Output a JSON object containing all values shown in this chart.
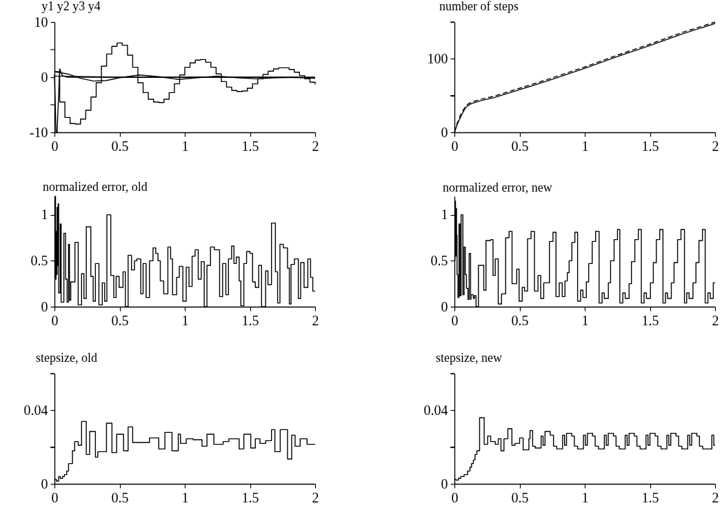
{
  "chart_data": [
    {
      "type": "line",
      "title": "y1 y2 y3 y4",
      "xlim": [
        0,
        2
      ],
      "ylim": [
        -10,
        10
      ],
      "xticks": [
        0,
        0.5,
        1,
        1.5,
        2
      ],
      "yticks": [
        -10,
        {
          "value": -5,
          "label": null
        },
        0,
        {
          "value": 5,
          "label": null
        },
        10
      ],
      "series": [
        {
          "type": "step",
          "color": "#000000",
          "x": [
            0,
            0.04,
            0.08,
            0.12,
            0.16,
            0.2,
            0.24,
            0.28,
            0.32,
            0.36,
            0.4,
            0.44,
            0.48,
            0.52,
            0.56,
            0.6,
            0.64,
            0.68,
            0.72,
            0.76,
            0.8,
            0.84,
            0.88,
            0.92,
            0.96,
            1,
            1.04,
            1.08,
            1.12,
            1.16,
            1.2,
            1.24,
            1.28,
            1.32,
            1.36,
            1.4,
            1.44,
            1.48,
            1.52,
            1.56,
            1.6,
            1.64,
            1.68,
            1.72,
            1.76,
            1.8,
            1.84,
            1.88,
            1.92,
            1.96,
            2
          ],
          "values": [
            1,
            -4.5,
            -7.3,
            -8.4,
            -8.5,
            -7.6,
            -6,
            -3.6,
            -1,
            2,
            4.2,
            5.6,
            6.2,
            5.8,
            4,
            1.8,
            -1,
            -2.8,
            -4,
            -4.5,
            -4.6,
            -4,
            -2.8,
            -1.2,
            0.4,
            1.8,
            2.6,
            3.1,
            3.2,
            2.7,
            1.8,
            0.6,
            -0.8,
            -1.8,
            -2.4,
            -2.6,
            -2.5,
            -2,
            -1.2,
            -0.3,
            0.5,
            1.1,
            1.5,
            1.7,
            1.7,
            1.4,
            0.9,
            0.3,
            -0.3,
            -0.9,
            -1.3
          ]
        },
        {
          "type": "line",
          "color": "#000000",
          "x": [
            0,
            0.012,
            0.02,
            0.04,
            0.06,
            0.1,
            0.5,
            1,
            1.5,
            2
          ],
          "values": [
            0.5,
            -10,
            -10,
            1.5,
            0.3,
            0,
            0,
            0,
            0,
            -0.1
          ]
        },
        {
          "type": "line",
          "color": "#000000",
          "x": [
            0,
            0.1,
            0.2,
            0.3,
            0.4,
            0.5,
            0.65,
            0.8,
            0.95,
            1.1,
            1.25,
            1.4,
            1.55,
            1.7,
            1.85,
            2
          ],
          "values": [
            1,
            0.6,
            -0.2,
            -0.7,
            -0.6,
            -0.1,
            0.4,
            0.1,
            -0.4,
            -0.1,
            0.2,
            -0.1,
            -0.3,
            -0.1,
            0,
            -0.2
          ]
        },
        {
          "type": "line",
          "color": "#000000",
          "x": [
            0,
            0.5,
            1,
            1.5,
            2
          ],
          "values": [
            0.2,
            0,
            0,
            0,
            0
          ]
        }
      ]
    },
    {
      "type": "line",
      "title": "number of steps",
      "xlim": [
        0,
        2
      ],
      "ylim": [
        0,
        150
      ],
      "xticks": [
        0,
        0.5,
        1,
        1.5,
        2
      ],
      "yticks": [
        0,
        {
          "value": 50,
          "label": null
        },
        100,
        {
          "value": 150,
          "label": null
        }
      ],
      "series": [
        {
          "color": "#000000",
          "line_style": "solid",
          "x": [
            0,
            0.02,
            0.05,
            0.08,
            0.1,
            0.13,
            0.2,
            0.3,
            0.5,
            0.75,
            1,
            1.25,
            1.5,
            1.75,
            2
          ],
          "values": [
            0,
            10,
            22,
            32,
            36,
            39,
            43,
            47,
            58,
            72,
            87,
            103,
            118,
            134,
            148
          ]
        },
        {
          "color": "#000000",
          "line_style": "dashed",
          "x": [
            0,
            0.02,
            0.05,
            0.08,
            0.1,
            0.13,
            0.2,
            0.3,
            0.5,
            0.75,
            1,
            1.25,
            1.5,
            1.75,
            2
          ],
          "values": [
            0,
            12,
            25,
            34,
            38,
            41,
            45,
            49,
            60,
            74,
            89,
            105,
            120,
            136,
            150
          ]
        }
      ]
    },
    {
      "type": "step",
      "title": "normalized error, old",
      "xlim": [
        0,
        2
      ],
      "ylim": [
        0,
        1.2
      ],
      "xticks": [
        0,
        0.5,
        1,
        1.5,
        2
      ],
      "yticks": [
        0,
        0.5,
        1
      ],
      "series": [
        {
          "color": "#000000",
          "x": [
            0,
            0.004,
            0.008,
            0.012,
            0.016,
            0.02,
            0.024,
            0.028,
            0.032,
            0.044,
            0.051,
            0.072,
            0.085,
            0.097,
            0.108,
            0.115,
            0.125,
            0.157,
            0.182,
            0.208,
            0.226,
            0.244,
            0.279,
            0.297,
            0.314,
            0.341,
            0.367,
            0.385,
            0.402,
            0.432,
            0.455,
            0.473,
            0.496,
            0.526,
            0.544,
            0.565,
            0.591,
            0.614,
            0.632,
            0.662,
            0.68,
            0.703,
            0.729,
            0.756,
            0.777,
            0.794,
            0.812,
            0.838,
            0.87,
            0.891,
            0.906,
            0.937,
            0.958,
            0.985,
            1.011,
            1.032,
            1.056,
            1.079,
            1.103,
            1.126,
            1.149,
            1.17,
            1.197,
            1.227,
            1.267,
            1.29,
            1.315,
            1.335,
            1.359,
            1.377,
            1.395,
            1.417,
            1.43,
            1.453,
            1.474,
            1.5,
            1.52,
            1.541,
            1.567,
            1.589,
            1.62,
            1.638,
            1.665,
            1.695,
            1.712,
            1.73,
            1.756,
            1.788,
            1.802,
            1.815,
            1.841,
            1.871,
            1.889,
            1.915,
            1.944,
            1.965,
            1.982,
            2
          ],
          "values": [
            0.5,
            1.2,
            0.3,
            0.82,
            0.35,
            1.08,
            0.45,
            1.12,
            0.15,
            0.9,
            0.05,
            0.8,
            0.3,
            0.05,
            0.68,
            0.07,
            0.27,
            0.7,
            0.02,
            0.36,
            0.09,
            0.87,
            0.33,
            0.06,
            0.47,
            0.02,
            0.26,
            0.06,
            1.0,
            0.34,
            0.1,
            0.33,
            0.21,
            0.38,
            0.0,
            0.56,
            0.4,
            0.5,
            0.52,
            0.14,
            0.47,
            0.1,
            0.5,
            0.64,
            0.58,
            0.5,
            0.28,
            0.14,
            0.65,
            0.52,
            0.13,
            0.32,
            0.44,
            0.06,
            0.43,
            0.22,
            0.55,
            0.62,
            0.3,
            0.49,
            0.0,
            0.45,
            0.65,
            0.62,
            0.11,
            0.47,
            0.13,
            0.52,
            0.66,
            0.47,
            0.54,
            0.28,
            0.01,
            0.47,
            0.6,
            0.58,
            0.27,
            0.21,
            0.45,
            0.0,
            0.39,
            0.24,
            0.91,
            0.38,
            0.04,
            0.68,
            0.64,
            0.42,
            0.03,
            0.46,
            0.52,
            0.09,
            0.48,
            0.21,
            0.52,
            0.32,
            0.17,
            0.17
          ]
        }
      ]
    },
    {
      "type": "step",
      "title": "normalized error, new",
      "xlim": [
        0,
        2
      ],
      "ylim": [
        0,
        1.2
      ],
      "xticks": [
        0,
        0.5,
        1,
        1.5,
        2
      ],
      "yticks": [
        0,
        0.5,
        1
      ],
      "series": [
        {
          "color": "#000000",
          "x": [
            0,
            0.004,
            0.008,
            0.012,
            0.016,
            0.02,
            0.027,
            0.035,
            0.043,
            0.051,
            0.065,
            0.074,
            0.083,
            0.092,
            0.104,
            0.113,
            0.124,
            0.127,
            0.145,
            0.154,
            0.166,
            0.184,
            0.225,
            0.242,
            0.278,
            0.296,
            0.313,
            0.336,
            0.361,
            0.393,
            0.419,
            0.442,
            0.478,
            0.496,
            0.52,
            0.538,
            0.561,
            0.588,
            0.614,
            0.641,
            0.662,
            0.685,
            0.729,
            0.756,
            0.779,
            0.804,
            0.827,
            0.848,
            0.866,
            0.88,
            0.901,
            0.924,
            0.945,
            0.968,
            0.986,
            1.012,
            1.03,
            1.057,
            1.083,
            1.11,
            1.133,
            1.15,
            1.181,
            1.198,
            1.225,
            1.251,
            1.269,
            1.292,
            1.31,
            1.34,
            1.358,
            1.384,
            1.411,
            1.434,
            1.455,
            1.473,
            1.504,
            1.526,
            1.549,
            1.575,
            1.6,
            1.619,
            1.635,
            1.664,
            1.685,
            1.712,
            1.738,
            1.765,
            1.782,
            1.8,
            1.83,
            1.853,
            1.876,
            1.903,
            1.924,
            1.945,
            1.963,
            1.986,
            2
          ],
          "values": [
            0.5,
            1.15,
            0.55,
            1.07,
            0.78,
            0.35,
            0.1,
            0.9,
            0.12,
            1.0,
            0.13,
            0.65,
            0.35,
            0.2,
            0.08,
            0.58,
            0.08,
            0.13,
            0.09,
            0.12,
            0.0,
            0.45,
            0.18,
            0.72,
            0.73,
            0.34,
            0.52,
            0.03,
            0.14,
            0.75,
            0.82,
            0.25,
            0.41,
            0.06,
            0.21,
            0.17,
            0.74,
            0.82,
            0.17,
            0.34,
            0.09,
            0.26,
            0.71,
            0.81,
            0.11,
            0.26,
            0.11,
            0.28,
            0.37,
            0.5,
            0.7,
            0.81,
            0.06,
            0.18,
            0.1,
            0.27,
            0.47,
            0.71,
            0.82,
            0.04,
            0.15,
            0.09,
            0.26,
            0.5,
            0.73,
            0.84,
            0.04,
            0.15,
            0.09,
            0.25,
            0.49,
            0.73,
            0.84,
            0.04,
            0.15,
            0.09,
            0.26,
            0.48,
            0.73,
            0.84,
            0.04,
            0.15,
            0.09,
            0.26,
            0.48,
            0.73,
            0.84,
            0.04,
            0.15,
            0.09,
            0.26,
            0.48,
            0.72,
            0.84,
            0.04,
            0.15,
            0.09,
            0.26,
            0.26
          ]
        }
      ]
    },
    {
      "type": "step",
      "title": "stepsize, old",
      "xlim": [
        0,
        2
      ],
      "ylim": [
        0,
        0.06
      ],
      "xticks": [
        0,
        0.5,
        1,
        1.5,
        2
      ],
      "yticks": [
        0,
        {
          "value": 0.02,
          "label": null
        },
        0.04,
        {
          "value": 0.06,
          "label": null
        }
      ],
      "series": [
        {
          "color": "#000000",
          "x": [
            0,
            0.014,
            0.032,
            0.044,
            0.062,
            0.076,
            0.094,
            0.108,
            0.138,
            0.155,
            0.182,
            0.208,
            0.244,
            0.27,
            0.314,
            0.332,
            0.399,
            0.441,
            0.477,
            0.53,
            0.565,
            0.6,
            0.729,
            0.8,
            0.847,
            0.902,
            0.95,
            0.967,
            1.011,
            1.064,
            1.132,
            1.17,
            1.223,
            1.294,
            1.338,
            1.417,
            1.453,
            1.506,
            1.541,
            1.576,
            1.62,
            1.665,
            1.691,
            1.732,
            1.788,
            1.82,
            1.846,
            1.885,
            1.938,
            2
          ],
          "values": [
            0.0025,
            0.0015,
            0.004,
            0.003,
            0.004,
            0.005,
            0.007,
            0.011,
            0.018,
            0.023,
            0.021,
            0.034,
            0.016,
            0.0285,
            0.0145,
            0.0175,
            0.033,
            0.017,
            0.027,
            0.018,
            0.031,
            0.0225,
            0.025,
            0.019,
            0.028,
            0.018,
            0.027,
            0.022,
            0.0245,
            0.024,
            0.0205,
            0.027,
            0.0215,
            0.023,
            0.0245,
            0.019,
            0.027,
            0.0195,
            0.0245,
            0.022,
            0.0235,
            0.0295,
            0.0175,
            0.0295,
            0.0135,
            0.0265,
            0.0205,
            0.0245,
            0.0215,
            0.0215
          ]
        }
      ]
    },
    {
      "type": "step",
      "title": "stepsize, new",
      "xlim": [
        0,
        2
      ],
      "ylim": [
        0,
        0.06
      ],
      "xticks": [
        0,
        0.5,
        1,
        1.5,
        2
      ],
      "yticks": [
        0,
        {
          "value": 0.02,
          "label": null
        },
        0.04,
        {
          "value": 0.06,
          "label": null
        }
      ],
      "series": [
        {
          "color": "#000000",
          "x": [
            0,
            0.012,
            0.03,
            0.048,
            0.074,
            0.101,
            0.119,
            0.131,
            0.145,
            0.158,
            0.172,
            0.193,
            0.228,
            0.255,
            0.278,
            0.313,
            0.336,
            0.357,
            0.38,
            0.41,
            0.441,
            0.465,
            0.5,
            0.527,
            0.571,
            0.58,
            0.6,
            0.62,
            0.665,
            0.68,
            0.695,
            0.735,
            0.76,
            0.785,
            0.83,
            0.845,
            0.86,
            0.9,
            0.92,
            0.945,
            0.99,
            1.005,
            1.02,
            1.06,
            1.08,
            1.105,
            1.15,
            1.165,
            1.18,
            1.22,
            1.24,
            1.265,
            1.31,
            1.325,
            1.34,
            1.38,
            1.4,
            1.425,
            1.47,
            1.485,
            1.5,
            1.54,
            1.56,
            1.585,
            1.63,
            1.645,
            1.66,
            1.7,
            1.72,
            1.745,
            1.79,
            1.805,
            1.82,
            1.86,
            1.88,
            1.905,
            1.975,
            1.99,
            2
          ],
          "values": [
            0.0025,
            0.002,
            0.003,
            0.004,
            0.005,
            0.007,
            0.009,
            0.011,
            0.013,
            0.016,
            0.018,
            0.036,
            0.0215,
            0.026,
            0.023,
            0.0215,
            0.0245,
            0.018,
            0.0245,
            0.03,
            0.021,
            0.022,
            0.025,
            0.0185,
            0.0245,
            0.029,
            0.0205,
            0.0195,
            0.026,
            0.021,
            0.0285,
            0.0265,
            0.0205,
            0.019,
            0.0265,
            0.021,
            0.0275,
            0.026,
            0.0205,
            0.019,
            0.0265,
            0.021,
            0.0275,
            0.026,
            0.0205,
            0.019,
            0.0265,
            0.021,
            0.0275,
            0.026,
            0.0205,
            0.019,
            0.0265,
            0.021,
            0.0275,
            0.026,
            0.0205,
            0.019,
            0.0265,
            0.021,
            0.0275,
            0.026,
            0.0205,
            0.019,
            0.0265,
            0.021,
            0.0275,
            0.026,
            0.0205,
            0.019,
            0.0265,
            0.021,
            0.0275,
            0.026,
            0.0205,
            0.019,
            0.0265,
            0.021,
            0.021
          ]
        }
      ]
    }
  ]
}
